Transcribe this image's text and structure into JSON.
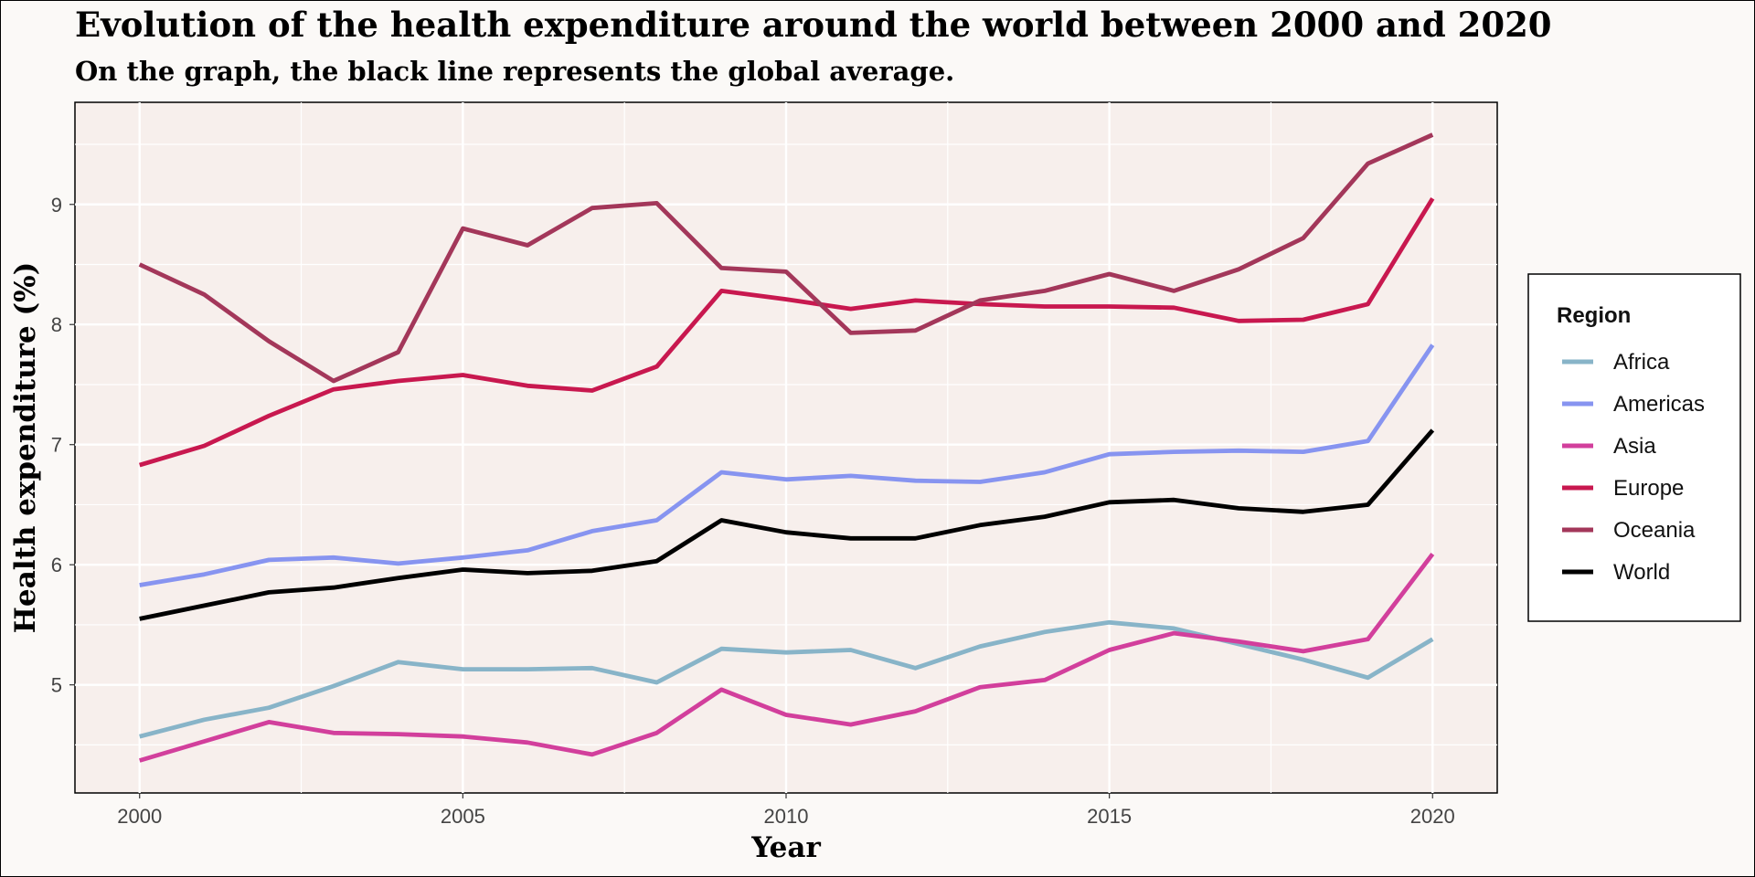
{
  "chart_data": {
    "type": "line",
    "title": "Evolution of the health expenditure around the world between 2000 and 2020",
    "subtitle": "On the graph, the black line represents the global average.",
    "xlabel": "Year",
    "ylabel": "Health expenditure (%)",
    "xlim": [
      1999,
      2021
    ],
    "ylim": [
      4.1,
      9.85
    ],
    "x_ticks": [
      2000,
      2005,
      2010,
      2015,
      2020
    ],
    "y_ticks": [
      5,
      6,
      7,
      8,
      9
    ],
    "grid": true,
    "legend": {
      "title": "Region",
      "position": "right"
    },
    "x": [
      2000,
      2001,
      2002,
      2003,
      2004,
      2005,
      2006,
      2007,
      2008,
      2009,
      2010,
      2011,
      2012,
      2013,
      2014,
      2015,
      2016,
      2017,
      2018,
      2019,
      2020
    ],
    "series": [
      {
        "name": "Africa",
        "color": "#88b4c8",
        "values": [
          4.57,
          4.71,
          4.81,
          4.99,
          5.19,
          5.13,
          5.13,
          5.14,
          5.02,
          5.3,
          5.27,
          5.29,
          5.14,
          5.32,
          5.44,
          5.52,
          5.47,
          5.34,
          5.21,
          5.06,
          5.38
        ]
      },
      {
        "name": "Americas",
        "color": "#8794f0",
        "values": [
          5.83,
          5.92,
          6.04,
          6.06,
          6.01,
          6.06,
          6.12,
          6.28,
          6.37,
          6.77,
          6.71,
          6.74,
          6.7,
          6.69,
          6.77,
          6.92,
          6.94,
          6.95,
          6.94,
          7.03,
          7.83
        ]
      },
      {
        "name": "Asia",
        "color": "#d23f9c",
        "values": [
          4.37,
          4.53,
          4.69,
          4.6,
          4.59,
          4.57,
          4.52,
          4.42,
          4.6,
          4.96,
          4.75,
          4.67,
          4.78,
          4.98,
          5.04,
          5.29,
          5.43,
          5.36,
          5.28,
          5.38,
          6.09
        ]
      },
      {
        "name": "Europe",
        "color": "#c8184f",
        "values": [
          6.83,
          6.99,
          7.24,
          7.46,
          7.53,
          7.58,
          7.49,
          7.45,
          7.65,
          8.28,
          8.21,
          8.13,
          8.2,
          8.17,
          8.15,
          8.15,
          8.14,
          8.03,
          8.04,
          8.17,
          9.05
        ]
      },
      {
        "name": "Oceania",
        "color": "#a3375a",
        "values": [
          8.5,
          8.25,
          7.86,
          7.53,
          7.77,
          8.8,
          8.66,
          8.97,
          9.01,
          8.47,
          8.44,
          7.93,
          7.95,
          8.2,
          8.28,
          8.42,
          8.28,
          8.46,
          8.72,
          9.34,
          9.58
        ]
      },
      {
        "name": "World",
        "color": "#000000",
        "values": [
          5.55,
          5.66,
          5.77,
          5.81,
          5.89,
          5.96,
          5.93,
          5.95,
          6.03,
          6.37,
          6.27,
          6.22,
          6.22,
          6.33,
          6.4,
          6.52,
          6.54,
          6.47,
          6.44,
          6.5,
          7.12
        ]
      }
    ]
  }
}
